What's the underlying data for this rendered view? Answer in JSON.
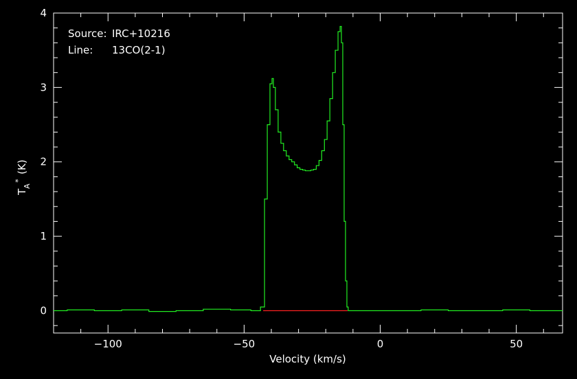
{
  "chart_data": {
    "type": "line",
    "title": "",
    "xlabel": "Velocity (km/s)",
    "ylabel": {
      "base": "T",
      "sub": "A",
      "sup": "*",
      "unit": "(K)"
    },
    "xlim": [
      -120,
      67
    ],
    "ylim": [
      -0.3,
      4.0
    ],
    "xticks": [
      -100,
      -50,
      0,
      50
    ],
    "yticks": [
      0,
      1,
      2,
      3,
      4
    ],
    "grid": false,
    "annotations": [
      {
        "key": "Source:",
        "value": "IRC+10216"
      },
      {
        "key": "Line:",
        "value": "13CO(2-1)"
      }
    ],
    "series": [
      {
        "color": "#22ee22",
        "x": [
          -120,
          -110,
          -100,
          -90,
          -80,
          -70,
          -60,
          -50,
          -45,
          -43,
          -42,
          -41,
          -40,
          -39.5,
          -39,
          -38,
          -37,
          -36,
          -35,
          -34,
          -33,
          -32,
          -31,
          -30,
          -29,
          -28,
          -27,
          -26,
          -25,
          -24,
          -23,
          -22,
          -21,
          -20,
          -19,
          -18,
          -17,
          -16,
          -15,
          -14.5,
          -14,
          -13.5,
          -13,
          -12.5,
          -12,
          -11.5,
          -10,
          0,
          10,
          20,
          30,
          40,
          50,
          60,
          67
        ],
        "values": [
          0.0,
          0.01,
          0.0,
          0.01,
          -0.01,
          0.0,
          0.02,
          0.01,
          0.0,
          0.05,
          1.5,
          2.5,
          3.05,
          3.12,
          3.0,
          2.7,
          2.4,
          2.25,
          2.15,
          2.08,
          2.03,
          2.0,
          1.96,
          1.92,
          1.9,
          1.89,
          1.88,
          1.88,
          1.89,
          1.9,
          1.95,
          2.02,
          2.15,
          2.3,
          2.55,
          2.85,
          3.2,
          3.5,
          3.75,
          3.82,
          3.6,
          2.5,
          1.2,
          0.4,
          0.05,
          0.0,
          0.0,
          0.0,
          0.0,
          0.01,
          0.0,
          0.0,
          0.01,
          0.0,
          0.0
        ]
      },
      {
        "color": "#ff2222",
        "x": [
          -43,
          -12
        ],
        "values": [
          0,
          0
        ]
      }
    ]
  }
}
